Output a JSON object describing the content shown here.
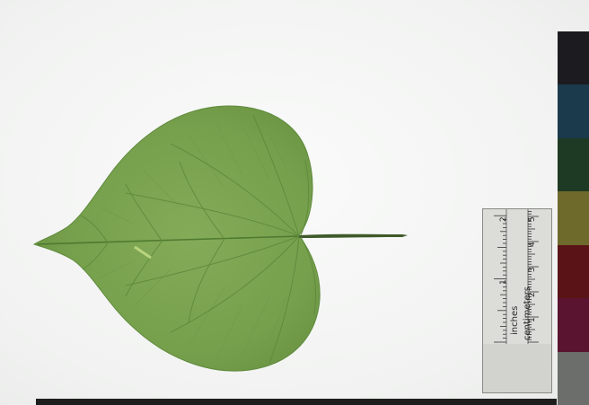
{
  "scene": {
    "subject": "leaf-specimen",
    "background_color": "#f5f6f5",
    "leaf_color": "#7aa24f",
    "vein_color": "#5e8a3c"
  },
  "color_card": {
    "swatches": [
      "#1c1c20",
      "#1b3a4c",
      "#1f3a24",
      "#6e6a2c",
      "#5a1418",
      "#5a1430",
      "#6b6e6a"
    ]
  },
  "ruler": {
    "inches_label": "inches",
    "centimeters_label": "centimeters",
    "inch_numbers": [
      "1",
      "2"
    ],
    "cm_numbers": [
      "1",
      "2",
      "3",
      "4",
      "5"
    ]
  }
}
